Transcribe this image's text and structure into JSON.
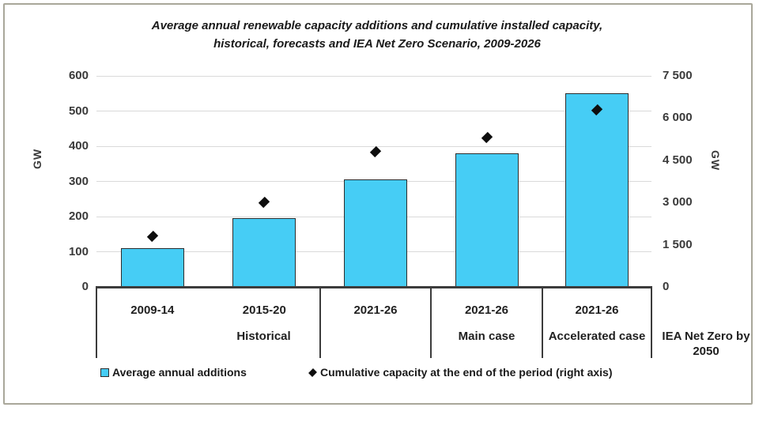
{
  "figure": {
    "title_line1": "Average annual renewable capacity additions and cumulative installed capacity,",
    "title_line2": "historical, forecasts and IEA Net Zero Scenario, 2009-2026"
  },
  "left_axis": {
    "label": "GW",
    "ticks": [
      {
        "label": "600",
        "value": 600
      },
      {
        "label": "500",
        "value": 500
      },
      {
        "label": "400",
        "value": 400
      },
      {
        "label": "300",
        "value": 300
      },
      {
        "label": "200",
        "value": 200
      },
      {
        "label": "100",
        "value": 100
      },
      {
        "label": "0",
        "value": 0
      }
    ]
  },
  "right_axis": {
    "label": "GW",
    "ticks": [
      {
        "label": "7 500",
        "value": 7500
      },
      {
        "label": "6 000",
        "value": 6000
      },
      {
        "label": "4 500",
        "value": 4500
      },
      {
        "label": "3 000",
        "value": 3000
      },
      {
        "label": "1 500",
        "value": 1500
      },
      {
        "label": "0",
        "value": 0
      }
    ]
  },
  "legend": {
    "items": [
      {
        "icon": "square-icon",
        "label": "Average annual additions"
      },
      {
        "icon": "diamond-icon",
        "label": "Cumulative capacity at the end of the period (right axis)"
      }
    ]
  },
  "colors": {
    "bar_fill": "#46cdf5",
    "bar_border": "#2d2d2d",
    "diamond": "#0e0e0e",
    "gridline": "#d9d9d9",
    "axis_line": "#3c3c3c",
    "frame_border": "#a9a79a",
    "text": "#1f1f1f"
  },
  "chart_data": {
    "type": "bar",
    "title": "Average annual renewable capacity additions and cumulative installed capacity, historical, forecasts and IEA Net Zero Scenario, 2009-2026",
    "categories": [
      "2009-14",
      "2015-20",
      "2021-26",
      "2021-26",
      "2021-26"
    ],
    "groups": [
      {
        "label": "Historical",
        "span": 2
      },
      {
        "label": "Main case",
        "span": 1
      },
      {
        "label": "Accelerated case",
        "span": 1
      },
      {
        "label": "IEA Net Zero by 2050",
        "span": 1
      }
    ],
    "series": [
      {
        "name": "Average annual additions",
        "type": "bar",
        "axis": "left",
        "values": [
          110,
          195,
          305,
          380,
          550
        ]
      },
      {
        "name": "Cumulative capacity at the end of the period (right axis)",
        "type": "scatter",
        "marker": "diamond",
        "axis": "right",
        "values": [
          1800,
          3000,
          4800,
          5300,
          6300
        ]
      }
    ],
    "left_ylabel": "GW",
    "right_ylabel": "GW",
    "left_ylim": [
      0,
      600
    ],
    "right_ylim": [
      0,
      7500
    ],
    "grid": true,
    "legend_position": "bottom"
  }
}
